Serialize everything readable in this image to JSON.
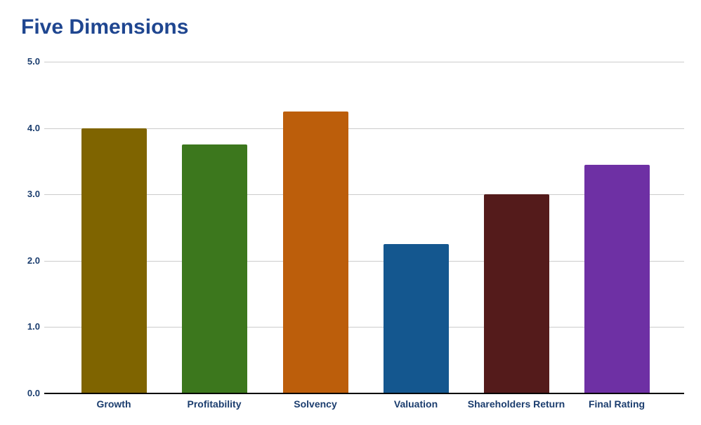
{
  "chart_data": {
    "type": "bar",
    "title": "Five Dimensions",
    "categories": [
      "Growth",
      "Profitability",
      "Solvency",
      "Valuation",
      "Shareholders Return",
      "Final Rating"
    ],
    "values": [
      4.0,
      3.75,
      4.25,
      2.25,
      3.0,
      3.45
    ],
    "bar_colors": [
      "#7F6400",
      "#3C771D",
      "#BC5E0B",
      "#14578F",
      "#541B1B",
      "#6E30A4"
    ],
    "ylim": [
      0,
      5
    ],
    "y_tick_labels": [
      "0.0",
      "1.0",
      "2.0",
      "3.0",
      "4.0",
      "5.0"
    ],
    "xlabel": "",
    "ylabel": "",
    "grid": true,
    "legend": false,
    "title_color": "#1F4690",
    "label_color": "#1B3D6E",
    "gridline_color": "#CCCCCC",
    "axis_color": "#000000",
    "background": "#FFFFFF"
  }
}
